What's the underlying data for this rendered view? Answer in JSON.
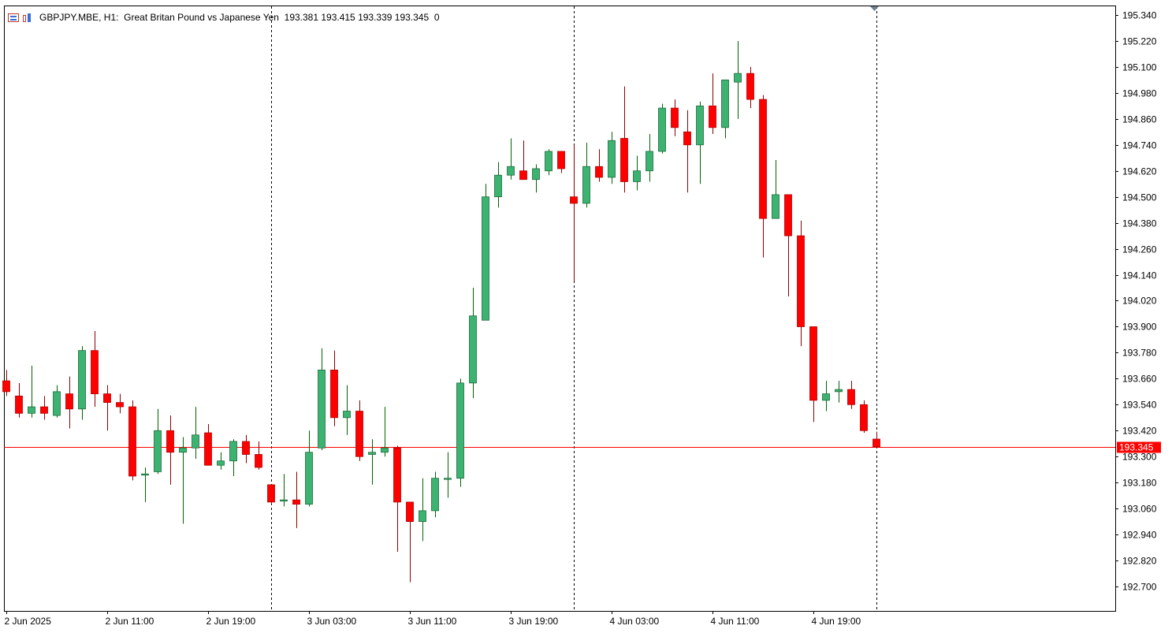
{
  "header": {
    "symbol": "GBPJPY.MBE, H1:",
    "description": "Great Britan Pound vs Japanese Yen",
    "ohlc": "193.381 193.415 193.339 193.345",
    "volume": "0"
  },
  "colors": {
    "bull": "#3cb371",
    "bear": "#ff0000",
    "bull_wick": "#006400",
    "bear_wick": "#8b0000",
    "price_line": "#ff0000",
    "grid": "#000000"
  },
  "chart_data": {
    "type": "candlestick",
    "timeframe": "H1",
    "ylim": [
      192.6,
      195.4
    ],
    "current_price": 193.345,
    "current_price_label": "193.345",
    "y_ticks": [
      {
        "value": 195.34,
        "label": "195.340"
      },
      {
        "value": 195.22,
        "label": "195.220"
      },
      {
        "value": 195.1,
        "label": "195.100"
      },
      {
        "value": 194.98,
        "label": "194.980"
      },
      {
        "value": 194.86,
        "label": "194.860"
      },
      {
        "value": 194.74,
        "label": "194.740"
      },
      {
        "value": 194.62,
        "label": "194.620"
      },
      {
        "value": 194.5,
        "label": "194.500"
      },
      {
        "value": 194.38,
        "label": "194.380"
      },
      {
        "value": 194.26,
        "label": "194.260"
      },
      {
        "value": 194.14,
        "label": "194.140"
      },
      {
        "value": 194.02,
        "label": "194.020"
      },
      {
        "value": 193.9,
        "label": "193.900"
      },
      {
        "value": 193.78,
        "label": "193.780"
      },
      {
        "value": 193.66,
        "label": "193.660"
      },
      {
        "value": 193.54,
        "label": "193.540"
      },
      {
        "value": 193.42,
        "label": "193.420"
      },
      {
        "value": 193.3,
        "label": "193.300"
      },
      {
        "value": 193.18,
        "label": "193.180"
      },
      {
        "value": 193.06,
        "label": "193.060"
      },
      {
        "value": 192.94,
        "label": "192.940"
      },
      {
        "value": 192.82,
        "label": "192.820"
      },
      {
        "value": 192.7,
        "label": "192.700"
      }
    ],
    "x_labels": [
      {
        "index": 0,
        "label": "2 Jun 2025"
      },
      {
        "index": 8,
        "label": "2 Jun 11:00"
      },
      {
        "index": 16,
        "label": "2 Jun 19:00"
      },
      {
        "index": 24,
        "label": "3 Jun 03:00"
      },
      {
        "index": 32,
        "label": "3 Jun 11:00"
      },
      {
        "index": 40,
        "label": "3 Jun 19:00"
      },
      {
        "index": 48,
        "label": "4 Jun 03:00"
      },
      {
        "index": 56,
        "label": "4 Jun 11:00"
      },
      {
        "index": 64,
        "label": "4 Jun 19:00"
      }
    ],
    "day_separators": [
      21,
      45,
      69
    ],
    "candles": [
      {
        "o": 193.65,
        "h": 193.7,
        "l": 193.58,
        "c": 193.6
      },
      {
        "o": 193.58,
        "h": 193.64,
        "l": 193.48,
        "c": 193.5
      },
      {
        "o": 193.5,
        "h": 193.72,
        "l": 193.48,
        "c": 193.53
      },
      {
        "o": 193.53,
        "h": 193.58,
        "l": 193.47,
        "c": 193.5
      },
      {
        "o": 193.49,
        "h": 193.63,
        "l": 193.48,
        "c": 193.6
      },
      {
        "o": 193.59,
        "h": 193.67,
        "l": 193.43,
        "c": 193.52
      },
      {
        "o": 193.52,
        "h": 193.81,
        "l": 193.47,
        "c": 193.79
      },
      {
        "o": 193.79,
        "h": 193.88,
        "l": 193.53,
        "c": 193.59
      },
      {
        "o": 193.59,
        "h": 193.63,
        "l": 193.42,
        "c": 193.55
      },
      {
        "o": 193.55,
        "h": 193.59,
        "l": 193.5,
        "c": 193.53
      },
      {
        "o": 193.53,
        "h": 193.56,
        "l": 193.19,
        "c": 193.21
      },
      {
        "o": 193.22,
        "h": 193.25,
        "l": 193.09,
        "c": 193.22
      },
      {
        "o": 193.23,
        "h": 193.52,
        "l": 193.22,
        "c": 193.42
      },
      {
        "o": 193.42,
        "h": 193.49,
        "l": 193.17,
        "c": 193.32
      },
      {
        "o": 193.32,
        "h": 193.39,
        "l": 192.99,
        "c": 193.34
      },
      {
        "o": 193.34,
        "h": 193.53,
        "l": 193.29,
        "c": 193.4
      },
      {
        "o": 193.41,
        "h": 193.45,
        "l": 193.26,
        "c": 193.26
      },
      {
        "o": 193.26,
        "h": 193.32,
        "l": 193.24,
        "c": 193.28
      },
      {
        "o": 193.28,
        "h": 193.38,
        "l": 193.21,
        "c": 193.37
      },
      {
        "o": 193.37,
        "h": 193.4,
        "l": 193.27,
        "c": 193.31
      },
      {
        "o": 193.31,
        "h": 193.37,
        "l": 193.24,
        "c": 193.25
      },
      {
        "o": 193.17,
        "h": 193.17,
        "l": 193.08,
        "c": 193.09
      },
      {
        "o": 193.1,
        "h": 193.22,
        "l": 193.07,
        "c": 193.1
      },
      {
        "o": 193.1,
        "h": 193.23,
        "l": 192.97,
        "c": 193.08
      },
      {
        "o": 193.08,
        "h": 193.42,
        "l": 193.07,
        "c": 193.32
      },
      {
        "o": 193.34,
        "h": 193.8,
        "l": 193.33,
        "c": 193.7
      },
      {
        "o": 193.7,
        "h": 193.79,
        "l": 193.44,
        "c": 193.48
      },
      {
        "o": 193.48,
        "h": 193.63,
        "l": 193.4,
        "c": 193.51
      },
      {
        "o": 193.51,
        "h": 193.56,
        "l": 193.28,
        "c": 193.3
      },
      {
        "o": 193.31,
        "h": 193.38,
        "l": 193.17,
        "c": 193.32
      },
      {
        "o": 193.32,
        "h": 193.53,
        "l": 193.3,
        "c": 193.34
      },
      {
        "o": 193.34,
        "h": 193.35,
        "l": 192.86,
        "c": 193.09
      },
      {
        "o": 193.09,
        "h": 193.08,
        "l": 192.72,
        "c": 193.0
      },
      {
        "o": 193.0,
        "h": 193.2,
        "l": 192.91,
        "c": 193.05
      },
      {
        "o": 193.05,
        "h": 193.23,
        "l": 193.02,
        "c": 193.2
      },
      {
        "o": 193.2,
        "h": 193.32,
        "l": 193.11,
        "c": 193.2
      },
      {
        "o": 193.2,
        "h": 193.66,
        "l": 193.16,
        "c": 193.64
      },
      {
        "o": 193.64,
        "h": 194.08,
        "l": 193.57,
        "c": 193.95
      },
      {
        "o": 193.93,
        "h": 194.56,
        "l": 193.93,
        "c": 194.5
      },
      {
        "o": 194.5,
        "h": 194.66,
        "l": 194.45,
        "c": 194.6
      },
      {
        "o": 194.6,
        "h": 194.77,
        "l": 194.58,
        "c": 194.64
      },
      {
        "o": 194.62,
        "h": 194.76,
        "l": 194.58,
        "c": 194.58
      },
      {
        "o": 194.58,
        "h": 194.65,
        "l": 194.52,
        "c": 194.63
      },
      {
        "o": 194.62,
        "h": 194.72,
        "l": 194.6,
        "c": 194.71
      },
      {
        "o": 194.71,
        "h": 194.71,
        "l": 194.61,
        "c": 194.63
      },
      {
        "o": 194.5,
        "h": 194.74,
        "l": 194.11,
        "c": 194.47
      },
      {
        "o": 194.47,
        "h": 194.75,
        "l": 194.45,
        "c": 194.64
      },
      {
        "o": 194.64,
        "h": 194.72,
        "l": 194.57,
        "c": 194.59
      },
      {
        "o": 194.59,
        "h": 194.8,
        "l": 194.56,
        "c": 194.76
      },
      {
        "o": 194.77,
        "h": 195.01,
        "l": 194.52,
        "c": 194.57
      },
      {
        "o": 194.57,
        "h": 194.69,
        "l": 194.53,
        "c": 194.62
      },
      {
        "o": 194.62,
        "h": 194.79,
        "l": 194.57,
        "c": 194.71
      },
      {
        "o": 194.71,
        "h": 194.93,
        "l": 194.7,
        "c": 194.91
      },
      {
        "o": 194.91,
        "h": 194.95,
        "l": 194.78,
        "c": 194.82
      },
      {
        "o": 194.8,
        "h": 194.9,
        "l": 194.52,
        "c": 194.74
      },
      {
        "o": 194.74,
        "h": 194.94,
        "l": 194.56,
        "c": 194.92
      },
      {
        "o": 194.92,
        "h": 195.07,
        "l": 194.79,
        "c": 194.82
      },
      {
        "o": 194.82,
        "h": 195.04,
        "l": 194.77,
        "c": 195.04
      },
      {
        "o": 195.03,
        "h": 195.22,
        "l": 194.86,
        "c": 195.07
      },
      {
        "o": 195.07,
        "h": 195.1,
        "l": 194.91,
        "c": 194.95
      },
      {
        "o": 194.95,
        "h": 194.97,
        "l": 194.22,
        "c": 194.4
      },
      {
        "o": 194.4,
        "h": 194.67,
        "l": 194.4,
        "c": 194.51
      },
      {
        "o": 194.51,
        "h": 194.51,
        "l": 194.04,
        "c": 194.32
      },
      {
        "o": 194.32,
        "h": 194.39,
        "l": 193.81,
        "c": 193.9
      },
      {
        "o": 193.9,
        "h": 193.9,
        "l": 193.46,
        "c": 193.56
      },
      {
        "o": 193.56,
        "h": 193.65,
        "l": 193.51,
        "c": 193.59
      },
      {
        "o": 193.6,
        "h": 193.65,
        "l": 193.55,
        "c": 193.61
      },
      {
        "o": 193.61,
        "h": 193.65,
        "l": 193.52,
        "c": 193.54
      },
      {
        "o": 193.54,
        "h": 193.56,
        "l": 193.41,
        "c": 193.42
      },
      {
        "o": 193.381,
        "h": 193.415,
        "l": 193.339,
        "c": 193.345
      }
    ]
  }
}
